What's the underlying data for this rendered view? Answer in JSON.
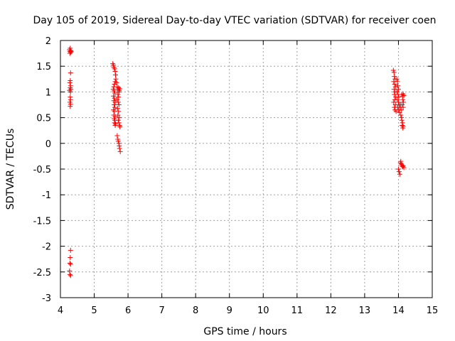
{
  "chart_data": {
    "type": "scatter",
    "title": "Day 105 of 2019, Sidereal Day-to-day VTEC variation (SDTVAR) for receiver coen",
    "xlabel": "GPS time / hours",
    "ylabel": "SDTVAR / TECUs",
    "xlim": [
      4,
      15
    ],
    "ylim": [
      -3,
      2
    ],
    "xticks": [
      4,
      5,
      6,
      7,
      8,
      9,
      10,
      11,
      12,
      13,
      14,
      15
    ],
    "yticks": [
      -3,
      -2.5,
      -2,
      -1.5,
      -1,
      -0.5,
      0,
      0.5,
      1,
      1.5,
      2
    ],
    "ytick_labels": [
      "-3",
      "-2.5",
      "-2",
      "-1.5",
      "-1",
      "-0.5",
      "0",
      "0.5",
      "1",
      "1.5",
      "2"
    ],
    "grid": true,
    "marker": "+",
    "color": "#ff0000",
    "series": [
      {
        "name": "SDTVAR",
        "points": [
          [
            4.27,
            1.82
          ],
          [
            4.28,
            1.79
          ],
          [
            4.29,
            1.85
          ],
          [
            4.3,
            1.77
          ],
          [
            4.31,
            1.8
          ],
          [
            4.32,
            1.78
          ],
          [
            4.28,
            1.75
          ],
          [
            4.3,
            1.37
          ],
          [
            4.29,
            1.22
          ],
          [
            4.28,
            1.18
          ],
          [
            4.3,
            1.12
          ],
          [
            4.29,
            1.08
          ],
          [
            4.31,
            1.05
          ],
          [
            4.27,
            1.03
          ],
          [
            4.3,
            1.0
          ],
          [
            4.29,
            0.9
          ],
          [
            4.3,
            0.85
          ],
          [
            4.28,
            0.8
          ],
          [
            4.3,
            0.76
          ],
          [
            4.29,
            0.72
          ],
          [
            4.3,
            -2.08
          ],
          [
            4.29,
            -2.22
          ],
          [
            4.28,
            -2.33
          ],
          [
            4.3,
            -2.35
          ],
          [
            4.27,
            -2.48
          ],
          [
            4.28,
            -2.55
          ],
          [
            4.3,
            -2.57
          ],
          [
            5.55,
            1.55
          ],
          [
            5.57,
            1.52
          ],
          [
            5.58,
            1.48
          ],
          [
            5.6,
            1.45
          ],
          [
            5.62,
            1.4
          ],
          [
            5.63,
            1.33
          ],
          [
            5.64,
            1.25
          ],
          [
            5.62,
            1.2
          ],
          [
            5.6,
            1.15
          ],
          [
            5.58,
            1.1
          ],
          [
            5.56,
            1.05
          ],
          [
            5.59,
            1.02
          ],
          [
            5.61,
            0.98
          ],
          [
            5.57,
            0.92
          ],
          [
            5.6,
            0.88
          ],
          [
            5.58,
            0.83
          ],
          [
            5.62,
            0.8
          ],
          [
            5.59,
            0.75
          ],
          [
            5.61,
            0.7
          ],
          [
            5.57,
            0.65
          ],
          [
            5.6,
            0.62
          ],
          [
            5.58,
            0.55
          ],
          [
            5.62,
            0.52
          ],
          [
            5.59,
            0.48
          ],
          [
            5.61,
            0.45
          ],
          [
            5.6,
            0.4
          ],
          [
            5.63,
            0.38
          ],
          [
            5.62,
            0.35
          ],
          [
            5.66,
            1.18
          ],
          [
            5.68,
            1.1
          ],
          [
            5.7,
            1.05
          ],
          [
            5.72,
            1.08
          ],
          [
            5.74,
            1.03
          ],
          [
            5.76,
            1.06
          ],
          [
            5.73,
            1.0
          ],
          [
            5.7,
            0.95
          ],
          [
            5.72,
            0.9
          ],
          [
            5.68,
            0.85
          ],
          [
            5.71,
            0.8
          ],
          [
            5.73,
            0.75
          ],
          [
            5.69,
            0.68
          ],
          [
            5.72,
            0.62
          ],
          [
            5.7,
            0.55
          ],
          [
            5.74,
            0.5
          ],
          [
            5.71,
            0.45
          ],
          [
            5.73,
            0.4
          ],
          [
            5.75,
            0.35
          ],
          [
            5.76,
            0.32
          ],
          [
            5.68,
            0.15
          ],
          [
            5.7,
            0.08
          ],
          [
            5.71,
            0.04
          ],
          [
            5.73,
            0.0
          ],
          [
            5.74,
            -0.05
          ],
          [
            5.75,
            -0.1
          ],
          [
            5.77,
            -0.16
          ],
          [
            13.85,
            1.42
          ],
          [
            13.87,
            1.38
          ],
          [
            13.88,
            1.3
          ],
          [
            13.9,
            1.25
          ],
          [
            13.86,
            1.2
          ],
          [
            13.89,
            1.15
          ],
          [
            13.91,
            1.1
          ],
          [
            13.87,
            1.05
          ],
          [
            13.9,
            1.0
          ],
          [
            13.88,
            0.95
          ],
          [
            13.92,
            0.9
          ],
          [
            13.89,
            0.85
          ],
          [
            13.86,
            0.8
          ],
          [
            13.91,
            0.75
          ],
          [
            13.88,
            0.7
          ],
          [
            13.9,
            0.65
          ],
          [
            13.93,
            0.62
          ],
          [
            13.95,
            1.25
          ],
          [
            13.97,
            1.2
          ],
          [
            13.98,
            1.12
          ],
          [
            14.0,
            1.05
          ],
          [
            13.96,
            1.0
          ],
          [
            13.99,
            0.95
          ],
          [
            14.01,
            0.9
          ],
          [
            13.97,
            0.85
          ],
          [
            14.0,
            0.8
          ],
          [
            14.02,
            0.75
          ],
          [
            13.98,
            0.7
          ],
          [
            14.01,
            0.65
          ],
          [
            14.03,
            0.6
          ],
          [
            14.05,
            0.7
          ],
          [
            14.06,
            0.75
          ],
          [
            14.08,
            0.65
          ],
          [
            14.07,
            0.55
          ],
          [
            14.09,
            0.5
          ],
          [
            14.1,
            0.45
          ],
          [
            14.12,
            0.4
          ],
          [
            14.11,
            0.35
          ],
          [
            14.13,
            0.3
          ],
          [
            14.14,
            0.33
          ],
          [
            14.1,
            0.95
          ],
          [
            14.12,
            0.92
          ],
          [
            14.14,
            0.96
          ],
          [
            14.16,
            0.93
          ],
          [
            14.13,
            0.85
          ],
          [
            14.15,
            0.8
          ],
          [
            14.11,
            0.75
          ],
          [
            14.14,
            0.7
          ],
          [
            14.0,
            -0.5
          ],
          [
            14.02,
            -0.55
          ],
          [
            14.04,
            -0.6
          ],
          [
            14.06,
            -0.38
          ],
          [
            14.08,
            -0.4
          ],
          [
            14.1,
            -0.42
          ],
          [
            14.12,
            -0.45
          ],
          [
            14.14,
            -0.44
          ],
          [
            14.16,
            -0.47
          ],
          [
            14.07,
            -0.35
          ]
        ]
      }
    ]
  }
}
